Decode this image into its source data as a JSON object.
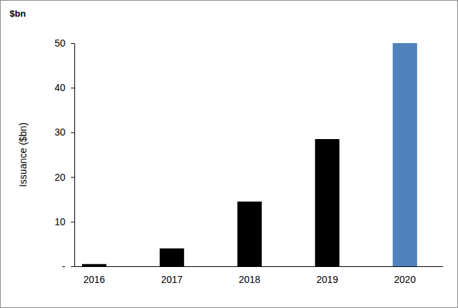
{
  "chart_data": {
    "type": "bar",
    "title": "$bn",
    "y_label": "Issuance ($bn)",
    "categories": [
      "2016",
      "2017",
      "2018",
      "2019",
      "2020"
    ],
    "values": [
      0.5,
      4,
      14.5,
      28.5,
      50
    ],
    "colors": [
      "#000000",
      "#000000",
      "#000000",
      "#000000",
      "#4f81bd"
    ],
    "ylim": [
      0,
      50
    ],
    "yticks": [
      {
        "value": 0,
        "label": "-"
      },
      10,
      20,
      30,
      40,
      50
    ],
    "grid": false
  }
}
